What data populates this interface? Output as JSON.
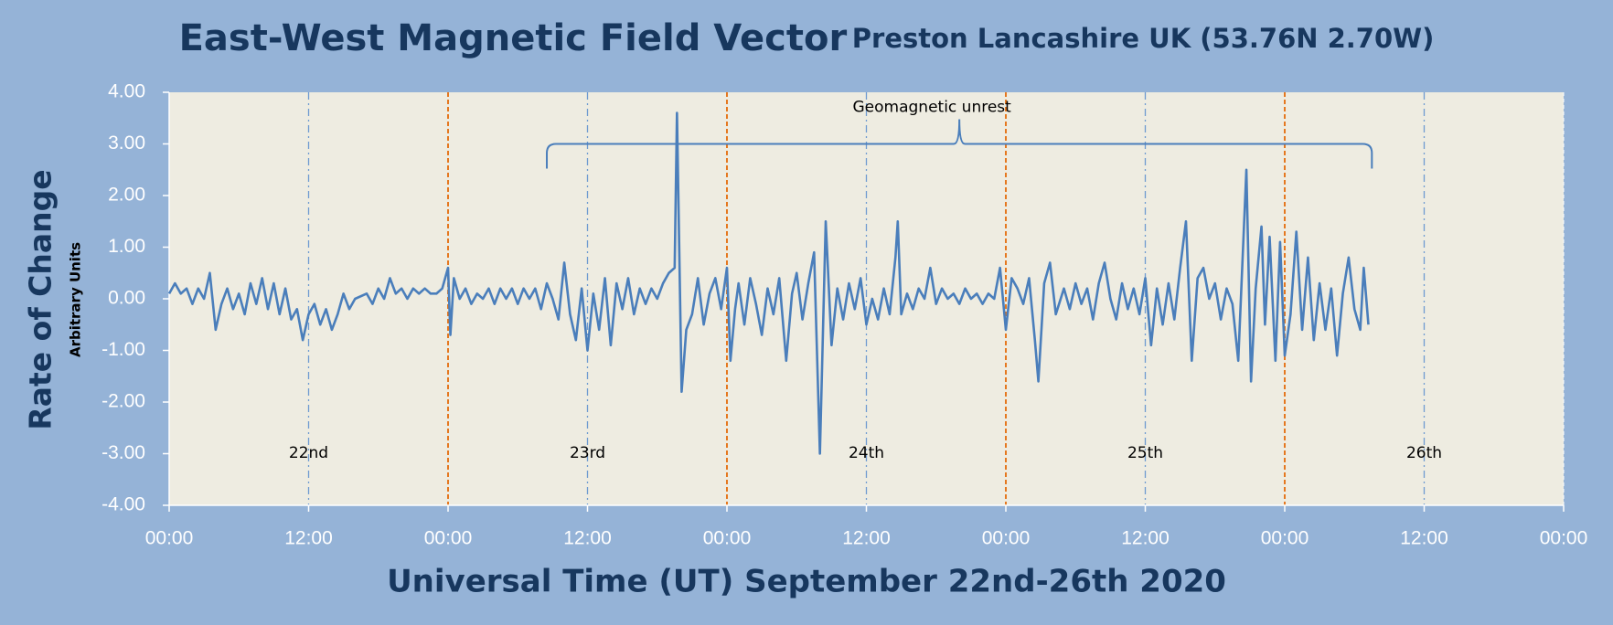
{
  "chart_data": {
    "type": "line",
    "title": "East-West Magnetic Field Vector",
    "subtitle": "Preston Lancashire UK (53.76N 2.70W)",
    "y_label": "Rate of Change",
    "y_sublabel": "Arbitrary Units",
    "x_label": "Universal Time (UT) September 22nd-26th 2020",
    "xlim": [
      0,
      120
    ],
    "xticks": [
      {
        "value": 0,
        "label": "00:00"
      },
      {
        "value": 12,
        "label": "12:00"
      },
      {
        "value": 24,
        "label": "00:00"
      },
      {
        "value": 36,
        "label": "12:00"
      },
      {
        "value": 48,
        "label": "00:00"
      },
      {
        "value": 60,
        "label": "12:00"
      },
      {
        "value": 72,
        "label": "00:00"
      },
      {
        "value": 84,
        "label": "12:00"
      },
      {
        "value": 96,
        "label": "00:00"
      },
      {
        "value": 108,
        "label": "12:00"
      },
      {
        "value": 120,
        "label": "00:00"
      }
    ],
    "ylim": [
      -4,
      4
    ],
    "yticks": [
      {
        "value": 4,
        "label": "4.00"
      },
      {
        "value": 3,
        "label": "3.00"
      },
      {
        "value": 2,
        "label": "2.00"
      },
      {
        "value": 1,
        "label": "1.00"
      },
      {
        "value": 0,
        "label": "0.00"
      },
      {
        "value": -1,
        "label": "-1.00"
      },
      {
        "value": -2,
        "label": "-2.00"
      },
      {
        "value": -3,
        "label": "-3.00"
      },
      {
        "value": -4,
        "label": "-4.00"
      }
    ],
    "day_lines": {
      "x": [
        24,
        48,
        72,
        96
      ],
      "color": "#e46c0a"
    },
    "noon_lines": {
      "x": [
        12,
        36,
        60,
        84,
        108
      ],
      "color": "#6f9bd1"
    },
    "day_labels": {
      "x": [
        12,
        36,
        60,
        84,
        108
      ],
      "labels": [
        "22nd",
        "23rd",
        "24th",
        "25th",
        "26th"
      ]
    },
    "annotation": {
      "text": "Geomagnetic unrest",
      "x_range": [
        32.5,
        103.5
      ],
      "y": 3
    },
    "series": [
      {
        "color": "#4a7ebb",
        "x": [
          0,
          0.5,
          1,
          1.5,
          2,
          2.5,
          3,
          3.5,
          4,
          4.5,
          5,
          5.5,
          6,
          6.5,
          7,
          7.5,
          8,
          8.5,
          9,
          9.5,
          10,
          10.5,
          11,
          11.5,
          12,
          12.5,
          13,
          13.5,
          14,
          14.5,
          15,
          15.5,
          16,
          17,
          17.5,
          18,
          18.5,
          19,
          19.5,
          20,
          20.5,
          21,
          21.5,
          22,
          22.5,
          23,
          23.5,
          24,
          24.2,
          24.5,
          25,
          25.5,
          26,
          26.5,
          27,
          27.5,
          28,
          28.5,
          29,
          29.5,
          30,
          30.5,
          31,
          31.5,
          32,
          32.5,
          33,
          33.5,
          34,
          34.5,
          35,
          35.5,
          36,
          36.5,
          37,
          37.5,
          38,
          38.5,
          39,
          39.5,
          40,
          40.5,
          41,
          41.5,
          42,
          42.5,
          43,
          43.5,
          43.7,
          44.1,
          44.5,
          45,
          45.5,
          46,
          46.5,
          47,
          47.5,
          48,
          48.3,
          48.7,
          49,
          49.5,
          50,
          50.5,
          51,
          51.5,
          52,
          52.5,
          53.1,
          53.6,
          54,
          54.5,
          55,
          55.5,
          56,
          56.5,
          57,
          57.5,
          58,
          58.5,
          59,
          59.5,
          60,
          60.5,
          61,
          61.5,
          62,
          62.5,
          62.7,
          63,
          63.5,
          64,
          64.5,
          65,
          65.5,
          66,
          66.5,
          67,
          67.5,
          68,
          68.5,
          69,
          69.5,
          70,
          70.5,
          71,
          71.5,
          72,
          72.5,
          73,
          73.5,
          74,
          74.5,
          74.8,
          75.3,
          75.8,
          76.3,
          77,
          77.5,
          78,
          78.5,
          79,
          79.5,
          80,
          80.5,
          81,
          81.5,
          82,
          82.5,
          83,
          83.5,
          84,
          84.5,
          85,
          85.5,
          86,
          86.5,
          87,
          87.5,
          88,
          88.5,
          89,
          89.5,
          90,
          90.5,
          91,
          91.5,
          92,
          92.7,
          93.1,
          93.5,
          94,
          94.3,
          94.7,
          95.2,
          95.6,
          96,
          96.5,
          97,
          97.5,
          98,
          98.5,
          99,
          99.5,
          100,
          100.5,
          101,
          101.5,
          102,
          102.5,
          102.8,
          103.2
        ],
        "values": [
          0.1,
          0.3,
          0.1,
          0.2,
          -0.1,
          0.2,
          0.0,
          0.5,
          -0.6,
          -0.1,
          0.2,
          -0.2,
          0.1,
          -0.3,
          0.3,
          -0.1,
          0.4,
          -0.2,
          0.3,
          -0.3,
          0.2,
          -0.4,
          -0.2,
          -0.8,
          -0.3,
          -0.1,
          -0.5,
          -0.2,
          -0.6,
          -0.3,
          0.1,
          -0.2,
          0.0,
          0.1,
          -0.1,
          0.2,
          0.0,
          0.4,
          0.1,
          0.2,
          0.0,
          0.2,
          0.1,
          0.2,
          0.1,
          0.1,
          0.2,
          0.6,
          -0.7,
          0.4,
          0.0,
          0.2,
          -0.1,
          0.1,
          0.0,
          0.2,
          -0.1,
          0.2,
          0.0,
          0.2,
          -0.1,
          0.2,
          0.0,
          0.2,
          -0.2,
          0.3,
          0.0,
          -0.4,
          0.7,
          -0.3,
          -0.8,
          0.2,
          -1.0,
          0.1,
          -0.6,
          0.4,
          -0.9,
          0.3,
          -0.2,
          0.4,
          -0.3,
          0.2,
          -0.1,
          0.2,
          0.0,
          0.3,
          0.5,
          0.6,
          3.6,
          -1.8,
          -0.6,
          -0.3,
          0.4,
          -0.5,
          0.1,
          0.4,
          -0.2,
          0.6,
          -1.2,
          -0.2,
          0.3,
          -0.5,
          0.4,
          -0.1,
          -0.7,
          0.2,
          -0.3,
          0.4,
          -1.2,
          0.1,
          0.5,
          -0.4,
          0.3,
          0.9,
          -3.0,
          1.5,
          -0.9,
          0.2,
          -0.4,
          0.3,
          -0.2,
          0.4,
          -0.5,
          0.0,
          -0.4,
          0.2,
          -0.3,
          0.8,
          1.5,
          -0.3,
          0.1,
          -0.2,
          0.2,
          0.0,
          0.6,
          -0.1,
          0.2,
          0.0,
          0.1,
          -0.1,
          0.2,
          0.0,
          0.1,
          -0.1,
          0.1,
          0.0,
          0.6,
          -0.6,
          0.4,
          0.2,
          -0.1,
          0.4,
          -0.8,
          -1.6,
          0.3,
          0.7,
          -0.3,
          0.2,
          -0.2,
          0.3,
          -0.1,
          0.2,
          -0.4,
          0.3,
          0.7,
          0.0,
          -0.4,
          0.3,
          -0.2,
          0.2,
          -0.3,
          0.4,
          -0.9,
          0.2,
          -0.5,
          0.3,
          -0.4,
          0.6,
          1.5,
          -1.2,
          0.4,
          0.6,
          0.0,
          0.3,
          -0.4,
          0.2,
          -0.1,
          -1.2,
          2.5,
          -1.6,
          0.2,
          1.4,
          -0.5,
          1.2,
          -1.2,
          1.1,
          -1.1,
          -0.3,
          1.3,
          -0.6,
          0.8,
          -0.8,
          0.3,
          -0.6,
          0.2,
          -1.1,
          0.1,
          0.8,
          -0.2,
          -0.6,
          0.6,
          -0.5
        ]
      }
    ]
  }
}
